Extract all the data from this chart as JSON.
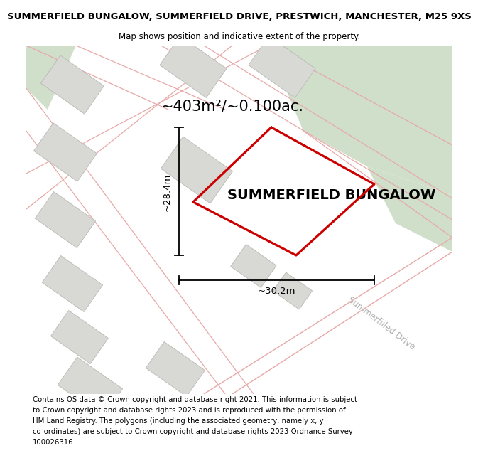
{
  "title_line1": "SUMMERFIELD BUNGALOW, SUMMERFIELD DRIVE, PRESTWICH, MANCHESTER, M25 9XS",
  "title_line2": "Map shows position and indicative extent of the property.",
  "property_label": "SUMMERFIELD BUNGALOW",
  "area_label": "~403m²/~0.100ac.",
  "dim_height_label": "~28.4m",
  "dim_width_label": "~30.2m",
  "road_label": "Summerfiiled Drive",
  "footer_lines": [
    "Contains OS data © Crown copyright and database right 2021. This information is subject",
    "to Crown copyright and database rights 2023 and is reproduced with the permission of",
    "HM Land Registry. The polygons (including the associated geometry, namely x, y",
    "co-ordinates) are subject to Crown copyright and database rights 2023 Ordnance Survey",
    "100026316."
  ],
  "bg_map_color": "#eeeee8",
  "green_color": "#d0dfca",
  "road_line_color": "#e8a8a8",
  "building_fill": "#d8d8d5",
  "building_edge": "#b8b8b5",
  "property_color": "#cc0000",
  "dim_color": "#000000",
  "road_label_color": "#b0b0b0",
  "title_fontsize": 9.5,
  "subtitle_fontsize": 8.5,
  "area_fontsize": 15,
  "property_name_fontsize": 14,
  "dim_fontsize": 9.5,
  "footer_fontsize": 7.3,
  "road_label_fontsize": 8.5,
  "road_label_rotation": -37
}
